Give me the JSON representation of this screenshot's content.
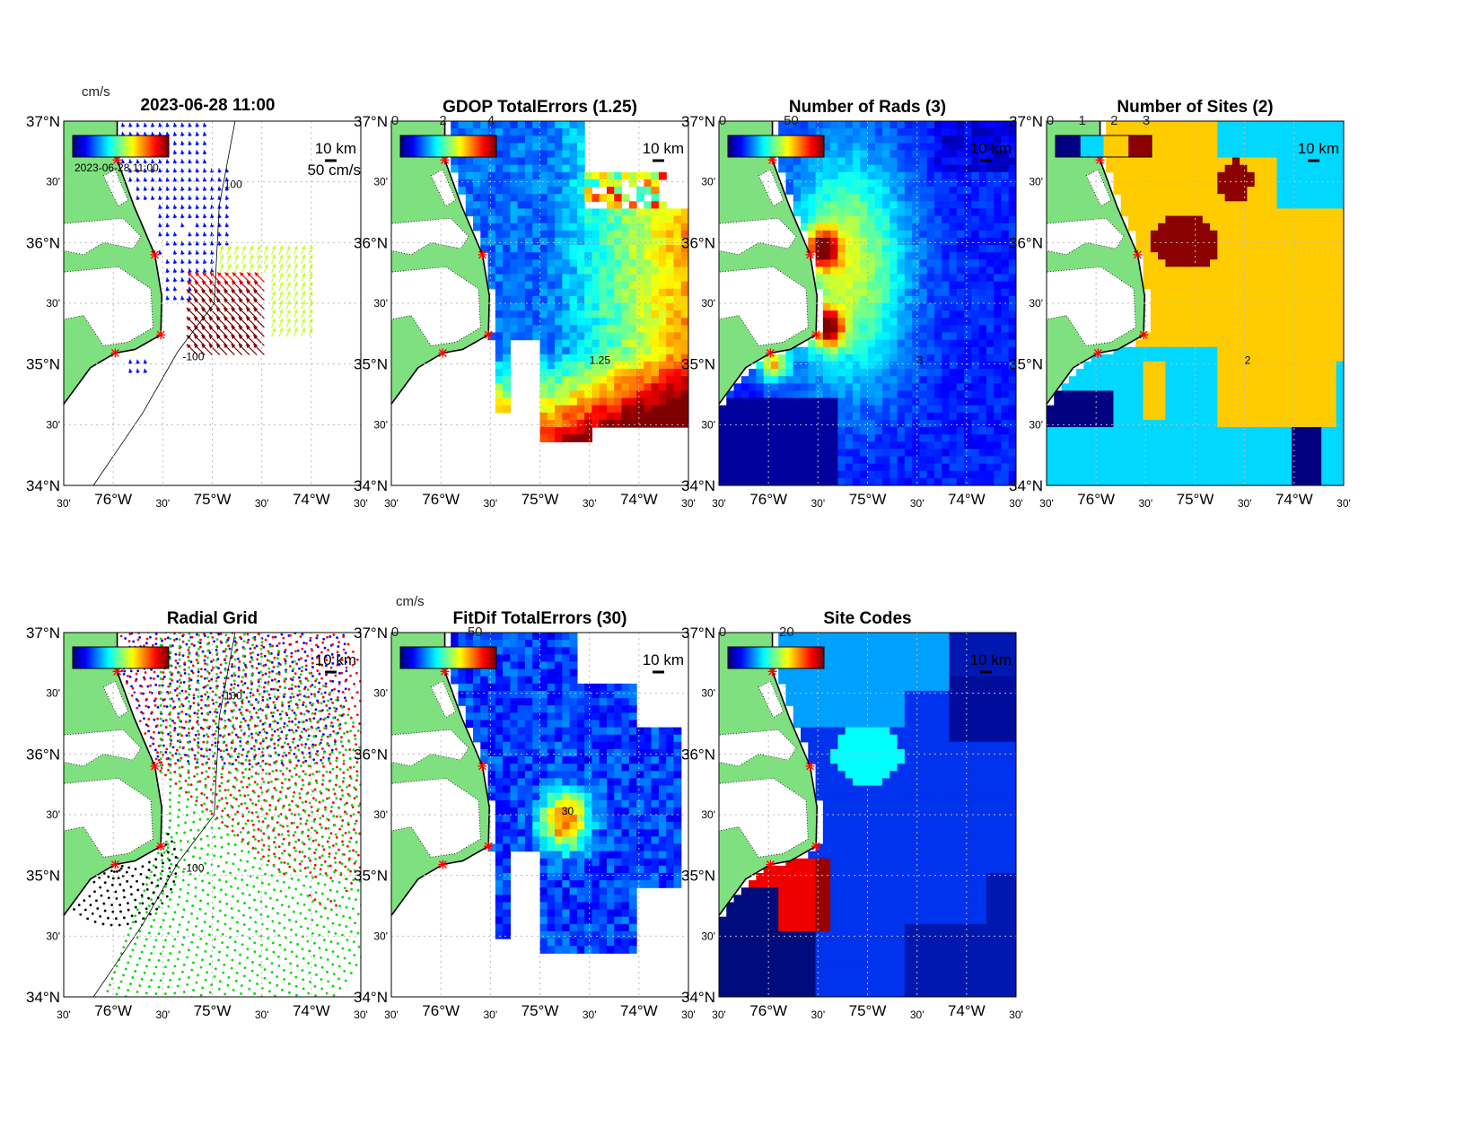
{
  "figure": {
    "timestamp": "2023-06-28 11:00",
    "lat_ticks": [
      "37°N",
      "30'",
      "36°N",
      "30'",
      "35°N",
      "30'",
      "34°N"
    ],
    "lon_ticks": [
      "30'",
      "76°W",
      "30'",
      "75°W",
      "30'",
      "74°W",
      "30'"
    ],
    "scale_bar_label": "10 km",
    "sites": [
      {
        "lon": -75.96,
        "lat": 36.68
      },
      {
        "lon": -75.58,
        "lat": 35.9
      },
      {
        "lon": -75.52,
        "lat": 35.24
      },
      {
        "lon": -75.98,
        "lat": 35.09
      }
    ],
    "isobath_label": "100",
    "isobath_label_neg": "-100"
  },
  "chart_data": [
    {
      "type": "quiver",
      "title": "2023-06-28 11:00",
      "colorbar_units": "cm/s",
      "colorbar_ticks": [],
      "reference_vector_label": "50 cm/s",
      "lon_range": [
        -76.5,
        -73.5
      ],
      "lat_range": [
        34,
        37
      ]
    },
    {
      "type": "heatmap",
      "title": "GDOP TotalErrors (1.25)",
      "colorbar_ticks": [
        "0",
        "2",
        "4"
      ],
      "clim": [
        0,
        4
      ],
      "contour_level": "1.25",
      "lon_range": [
        -76.5,
        -73.5
      ],
      "lat_range": [
        34,
        37
      ]
    },
    {
      "type": "heatmap",
      "title": "Number of Rads (3)",
      "colorbar_ticks": [
        "0",
        "50"
      ],
      "clim": [
        0,
        70
      ],
      "contour_level": "3",
      "lon_range": [
        -76.5,
        -73.5
      ],
      "lat_range": [
        34,
        37
      ]
    },
    {
      "type": "heatmap",
      "title": "Number of Sites (2)",
      "colorbar_ticks": [
        "0",
        "1",
        "2",
        "3"
      ],
      "clim": [
        0,
        3
      ],
      "contour_level": "2",
      "lon_range": [
        -76.5,
        -73.5
      ],
      "lat_range": [
        34,
        37
      ]
    },
    {
      "type": "scatter",
      "title": "Radial Grid",
      "series_colors": [
        "#0000ff",
        "#ff0000",
        "#00dd00",
        "#000000"
      ],
      "lon_range": [
        -76.5,
        -73.5
      ],
      "lat_range": [
        34,
        37
      ]
    },
    {
      "type": "heatmap",
      "title": "FitDif TotalErrors (30)",
      "colorbar_units": "cm/s",
      "colorbar_ticks": [
        "0",
        "50"
      ],
      "clim": [
        0,
        60
      ],
      "contour_level": "30",
      "lon_range": [
        -76.5,
        -73.5
      ],
      "lat_range": [
        34,
        37
      ]
    },
    {
      "type": "heatmap",
      "title": "Site Codes",
      "colorbar_ticks": [
        "0",
        "20"
      ],
      "clim": [
        0,
        30
      ],
      "lon_range": [
        -76.5,
        -73.5
      ],
      "lat_range": [
        34,
        37
      ]
    }
  ]
}
